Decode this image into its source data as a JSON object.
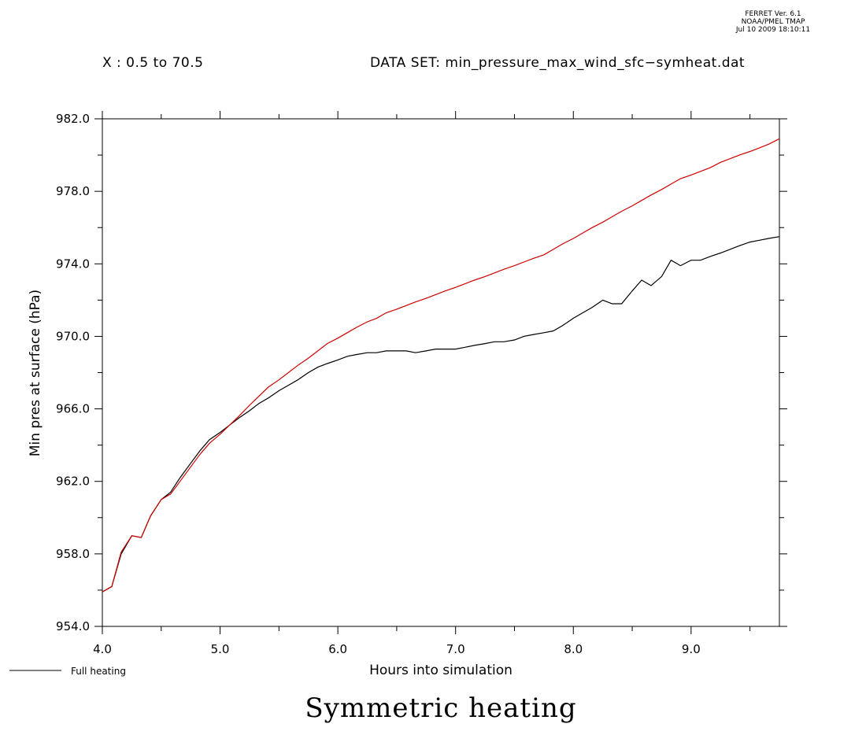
{
  "stamp": {
    "line1": "FERRET Ver. 6.1",
    "line2": "NOAA/PMEL TMAP",
    "line3": "Jul 10 2009 18:10:11"
  },
  "header": {
    "x_range": "X : 0.5 to 70.5",
    "dataset": "DATA SET: min_pressure_max_wind_sfc−symheat.dat"
  },
  "figure_title": "Symmetric heating",
  "chart_data": {
    "type": "line",
    "xlabel": "Hours into simulation",
    "ylabel": "Min pres at surface (hPa)",
    "xlim": [
      4.0,
      9.75
    ],
    "ylim": [
      954.0,
      982.0
    ],
    "x_ticks": [
      "4.0",
      "5.0",
      "6.0",
      "7.0",
      "8.0",
      "9.0"
    ],
    "y_ticks": [
      "954.0",
      "958.0",
      "962.0",
      "966.0",
      "970.0",
      "974.0",
      "978.0",
      "982.0"
    ],
    "grid": false,
    "legend_position": "bottom-left",
    "series": [
      {
        "name": "Full heating",
        "color": "#000000",
        "x": [
          4.0,
          4.08,
          4.16,
          4.25,
          4.33,
          4.41,
          4.5,
          4.58,
          4.66,
          4.75,
          4.83,
          4.91,
          5.0,
          5.08,
          5.16,
          5.25,
          5.33,
          5.41,
          5.5,
          5.58,
          5.66,
          5.75,
          5.83,
          5.91,
          6.0,
          6.08,
          6.16,
          6.25,
          6.33,
          6.41,
          6.5,
          6.58,
          6.66,
          6.75,
          6.83,
          6.91,
          7.0,
          7.08,
          7.16,
          7.25,
          7.33,
          7.41,
          7.5,
          7.58,
          7.66,
          7.75,
          7.83,
          7.91,
          8.0,
          8.08,
          8.16,
          8.25,
          8.33,
          8.41,
          8.5,
          8.58,
          8.66,
          8.75,
          8.83,
          8.91,
          9.0,
          9.08,
          9.16,
          9.25,
          9.33,
          9.41,
          9.5,
          9.58,
          9.66,
          9.75
        ],
        "values": [
          955.9,
          956.2,
          958.0,
          959.0,
          958.9,
          960.1,
          961.0,
          961.4,
          962.2,
          963.0,
          963.7,
          964.3,
          964.7,
          965.1,
          965.5,
          965.9,
          966.3,
          966.6,
          967.0,
          967.3,
          967.6,
          968.0,
          968.3,
          968.5,
          968.7,
          968.9,
          969.0,
          969.1,
          969.1,
          969.2,
          969.2,
          969.2,
          969.1,
          969.2,
          969.3,
          969.3,
          969.3,
          969.4,
          969.5,
          969.6,
          969.7,
          969.7,
          969.8,
          970.0,
          970.1,
          970.2,
          970.3,
          970.6,
          971.0,
          971.3,
          971.6,
          972.0,
          971.8,
          971.8,
          972.5,
          973.1,
          972.8,
          973.3,
          974.2,
          973.9,
          974.2,
          974.2,
          974.4,
          974.6,
          974.8,
          975.0,
          975.2,
          975.3,
          975.4,
          975.5
        ]
      },
      {
        "color": "#d00000",
        "x": [
          4.0,
          4.08,
          4.16,
          4.25,
          4.33,
          4.41,
          4.5,
          4.58,
          4.66,
          4.75,
          4.83,
          4.91,
          5.0,
          5.08,
          5.16,
          5.25,
          5.33,
          5.41,
          5.5,
          5.58,
          5.66,
          5.75,
          5.83,
          5.91,
          6.0,
          6.08,
          6.16,
          6.25,
          6.33,
          6.41,
          6.5,
          6.58,
          6.66,
          6.75,
          6.83,
          6.91,
          7.0,
          7.08,
          7.16,
          7.25,
          7.33,
          7.41,
          7.5,
          7.58,
          7.66,
          7.75,
          7.83,
          7.91,
          8.0,
          8.08,
          8.16,
          8.25,
          8.33,
          8.41,
          8.5,
          8.58,
          8.66,
          8.75,
          8.83,
          8.91,
          9.0,
          9.08,
          9.16,
          9.25,
          9.33,
          9.41,
          9.5,
          9.58,
          9.66,
          9.75
        ],
        "values": [
          955.9,
          956.2,
          958.1,
          959.0,
          958.9,
          960.1,
          961.0,
          961.3,
          962.0,
          962.8,
          963.5,
          964.1,
          964.6,
          965.1,
          965.6,
          966.2,
          966.7,
          967.2,
          967.6,
          968.0,
          968.4,
          968.8,
          969.2,
          969.6,
          969.9,
          970.2,
          970.5,
          970.8,
          971.0,
          971.3,
          971.5,
          971.7,
          971.9,
          972.1,
          972.3,
          972.5,
          972.7,
          972.9,
          973.1,
          973.3,
          973.5,
          973.7,
          973.9,
          974.1,
          974.3,
          974.5,
          974.8,
          975.1,
          975.4,
          975.7,
          976.0,
          976.3,
          976.6,
          976.9,
          977.2,
          977.5,
          977.8,
          978.1,
          978.4,
          978.7,
          978.9,
          979.1,
          979.3,
          979.6,
          979.8,
          980.0,
          980.2,
          980.4,
          980.6,
          980.9
        ]
      }
    ]
  }
}
